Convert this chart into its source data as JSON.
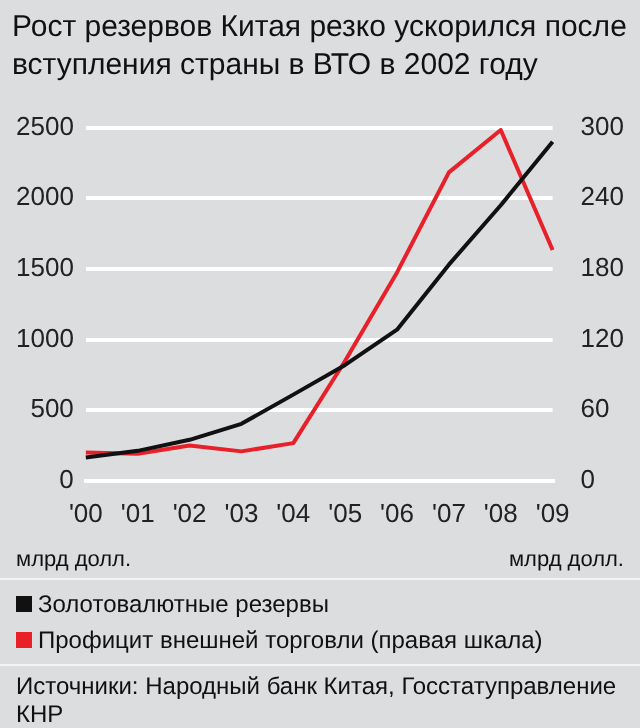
{
  "chart_data": {
    "type": "line",
    "title": "Рост резервов Китая резко ускорился после вступления страны в ВТО в 2002 году",
    "ylabel": "млрд долл.",
    "y2label": "млрд долл.",
    "categories": [
      "'00",
      "'01",
      "'02",
      "'03",
      "'04",
      "'05",
      "'06",
      "'07",
      "'08",
      "'09"
    ],
    "series": [
      {
        "name": "Золотовалютные резервы",
        "color": "#111111",
        "values": [
          165,
          212,
          290,
          403,
          610,
          820,
          1070,
          1530,
          1950,
          2400
        ]
      },
      {
        "name": "Профицит внешней торговли (правая шкала)",
        "color": "#e8202a",
        "axis": "y2",
        "values": [
          24,
          23,
          30,
          25,
          32,
          102,
          177,
          262,
          298,
          196
        ]
      }
    ],
    "ylim": [
      0,
      2500
    ],
    "yticks": [
      0,
      500,
      1000,
      1500,
      2000,
      2500
    ],
    "y2lim": [
      0,
      300
    ],
    "y2ticks": [
      0,
      60,
      120,
      180,
      240,
      300
    ],
    "grid": "y",
    "legend": "bottom",
    "marker": "none",
    "line_style": "solid",
    "annotations": [
      "Источники: Народный банк Китая, Госстатуправление КНР"
    ]
  }
}
